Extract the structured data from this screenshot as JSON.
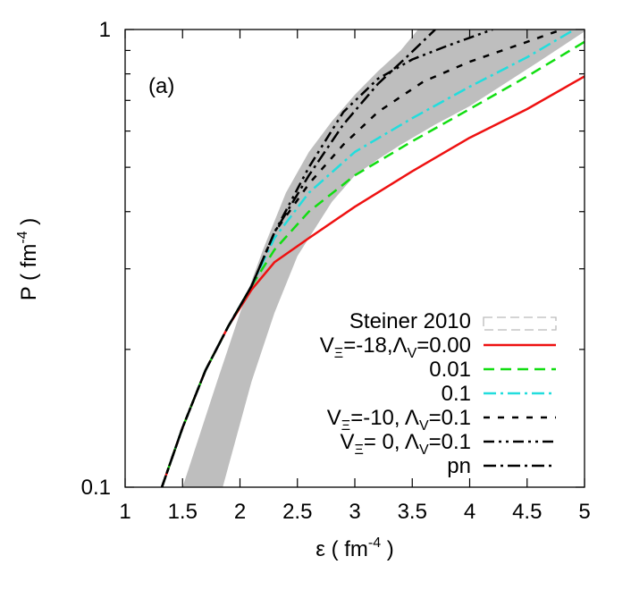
{
  "chart_data": {
    "type": "line",
    "panel_label": "(a)",
    "xlabel": {
      "base": "ε ( fm",
      "sup": "-4",
      "tail": " )"
    },
    "ylabel": {
      "base": "P ( fm",
      "sup": "-4",
      "tail": " )"
    },
    "xlim": [
      1,
      5
    ],
    "ylim": [
      0.1,
      1
    ],
    "yscale": "log",
    "x_ticks": [
      1,
      1.5,
      2,
      2.5,
      3,
      3.5,
      4,
      4.5,
      5
    ],
    "x_tick_labels": [
      "1",
      "1.5",
      "2",
      "2.5",
      "3",
      "3.5",
      "4",
      "4.5",
      "5"
    ],
    "y_tick_labels": [
      {
        "value": 1,
        "label": "1"
      },
      {
        "value": 0.1,
        "label": "0.1"
      }
    ],
    "grid": false,
    "legend_position": "bottom-right",
    "band": {
      "name": "Steiner 2010",
      "color": "#bebebe",
      "upper": [
        [
          1.5,
          0.1
        ],
        [
          1.8,
          0.17
        ],
        [
          2.0,
          0.24
        ],
        [
          2.2,
          0.33
        ],
        [
          2.4,
          0.44
        ],
        [
          2.6,
          0.54
        ],
        [
          2.8,
          0.63
        ],
        [
          3.0,
          0.72
        ],
        [
          3.2,
          0.81
        ],
        [
          3.4,
          0.9
        ],
        [
          3.55,
          1.0
        ]
      ],
      "lower": [
        [
          1.85,
          0.1
        ],
        [
          2.1,
          0.17
        ],
        [
          2.3,
          0.24
        ],
        [
          2.5,
          0.32
        ],
        [
          2.8,
          0.42
        ],
        [
          3.0,
          0.48
        ],
        [
          3.2,
          0.52
        ],
        [
          3.4,
          0.56
        ],
        [
          3.7,
          0.62
        ],
        [
          4.0,
          0.68
        ],
        [
          4.3,
          0.76
        ],
        [
          4.6,
          0.85
        ],
        [
          5.0,
          0.99
        ]
      ]
    },
    "series": [
      {
        "name": "VΞ=-18,ΛV=0.00",
        "legend": {
          "main": "V",
          "sub1": "Ξ",
          "mid": "=-18,Λ",
          "sub2": "V",
          "tail": "=0.00"
        },
        "color": "#ee1111",
        "dash": "",
        "width": 2.5,
        "points": [
          [
            1.32,
            0.1
          ],
          [
            1.5,
            0.135
          ],
          [
            1.7,
            0.18
          ],
          [
            1.9,
            0.225
          ],
          [
            2.1,
            0.27
          ],
          [
            2.3,
            0.31
          ],
          [
            2.6,
            0.35
          ],
          [
            3.0,
            0.41
          ],
          [
            3.5,
            0.49
          ],
          [
            4.0,
            0.58
          ],
          [
            4.5,
            0.67
          ],
          [
            5.0,
            0.79
          ]
        ]
      },
      {
        "name": "0.01",
        "legend": {
          "main": "0.01"
        },
        "color": "#11dd11",
        "dash": "12,7",
        "width": 2.5,
        "points": [
          [
            1.32,
            0.1
          ],
          [
            1.5,
            0.135
          ],
          [
            1.7,
            0.18
          ],
          [
            1.9,
            0.225
          ],
          [
            2.1,
            0.275
          ],
          [
            2.3,
            0.33
          ],
          [
            2.6,
            0.4
          ],
          [
            3.0,
            0.48
          ],
          [
            3.5,
            0.57
          ],
          [
            4.0,
            0.67
          ],
          [
            4.5,
            0.79
          ],
          [
            5.0,
            0.94
          ]
        ]
      },
      {
        "name": "0.1",
        "legend": {
          "main": "0.1"
        },
        "color": "#22dddd",
        "dash": "14,5,3,5",
        "width": 2.5,
        "points": [
          [
            1.32,
            0.1
          ],
          [
            1.5,
            0.135
          ],
          [
            1.7,
            0.18
          ],
          [
            1.9,
            0.225
          ],
          [
            2.1,
            0.275
          ],
          [
            2.3,
            0.35
          ],
          [
            2.6,
            0.44
          ],
          [
            3.0,
            0.54
          ],
          [
            3.5,
            0.64
          ],
          [
            4.0,
            0.75
          ],
          [
            4.5,
            0.87
          ],
          [
            5.0,
            1.03
          ]
        ]
      },
      {
        "name": "VΞ=-10, ΛV=0.1",
        "legend": {
          "main": "V",
          "sub1": "Ξ",
          "mid": "=-10, Λ",
          "sub2": "V",
          "tail": "=0.1"
        },
        "color": "#000000",
        "dash": "7,9",
        "width": 2.5,
        "points": [
          [
            1.32,
            0.1
          ],
          [
            1.5,
            0.135
          ],
          [
            1.7,
            0.18
          ],
          [
            1.9,
            0.225
          ],
          [
            2.1,
            0.275
          ],
          [
            2.3,
            0.36
          ],
          [
            2.6,
            0.46
          ],
          [
            2.9,
            0.56
          ],
          [
            3.2,
            0.66
          ],
          [
            3.6,
            0.77
          ],
          [
            4.0,
            0.85
          ],
          [
            4.5,
            0.94
          ],
          [
            4.9,
            1.02
          ]
        ]
      },
      {
        "name": "VΞ= 0, ΛV=0.1",
        "legend": {
          "main": "V",
          "sub1": "Ξ",
          "mid": "= 0, Λ",
          "sub2": "V",
          "tail": "=0.1"
        },
        "color": "#000000",
        "dash": "12,5,3,5,3,5",
        "width": 2.5,
        "points": [
          [
            1.32,
            0.1
          ],
          [
            1.5,
            0.135
          ],
          [
            1.7,
            0.18
          ],
          [
            1.9,
            0.225
          ],
          [
            2.1,
            0.275
          ],
          [
            2.3,
            0.36
          ],
          [
            2.6,
            0.5
          ],
          [
            2.9,
            0.66
          ],
          [
            3.2,
            0.78
          ],
          [
            3.5,
            0.86
          ],
          [
            3.8,
            0.92
          ],
          [
            4.2,
            1.0
          ]
        ]
      },
      {
        "name": "pn",
        "legend": {
          "main": "pn"
        },
        "color": "#000000",
        "dash": "14,5,3,5",
        "width": 2.5,
        "points": [
          [
            1.32,
            0.1
          ],
          [
            1.5,
            0.135
          ],
          [
            1.7,
            0.18
          ],
          [
            1.9,
            0.225
          ],
          [
            2.1,
            0.275
          ],
          [
            2.3,
            0.36
          ],
          [
            2.6,
            0.48
          ],
          [
            2.9,
            0.62
          ],
          [
            3.2,
            0.76
          ],
          [
            3.45,
            0.87
          ],
          [
            3.7,
            1.0
          ]
        ]
      }
    ]
  }
}
